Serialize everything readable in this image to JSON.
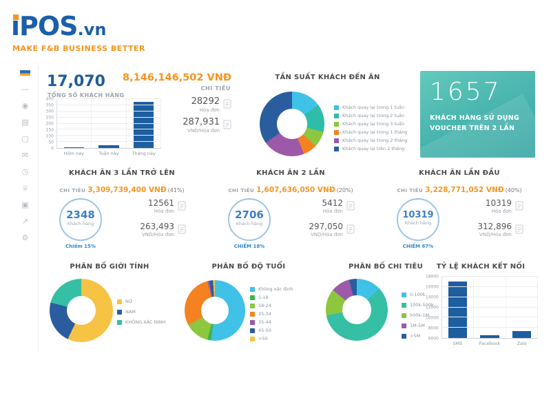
{
  "brand": {
    "logo_main": "iPOS",
    "logo_suffix": ".vn",
    "tagline": "MAKE F&B BUSINESS BETTER"
  },
  "sidebar": {
    "icons": [
      {
        "name": "menu-icon",
        "glyph": "—"
      },
      {
        "name": "users-icon",
        "glyph": "◉"
      },
      {
        "name": "chart-icon",
        "glyph": "▤"
      },
      {
        "name": "window-icon",
        "glyph": "▢"
      },
      {
        "name": "message-icon",
        "glyph": "✉"
      },
      {
        "name": "clock-icon",
        "glyph": "◷"
      },
      {
        "name": "crown-icon",
        "glyph": "♕"
      },
      {
        "name": "camera-icon",
        "glyph": "▣"
      },
      {
        "name": "trend-icon",
        "glyph": "↗"
      },
      {
        "name": "settings-icon",
        "glyph": "⚙"
      }
    ]
  },
  "summary": {
    "total_customers": "17,070",
    "total_customers_label": "TỔNG SỐ KHÁCH HÀNG",
    "spend_value": "8,146,146,502 VNĐ",
    "spend_label": "CHI TIÊU",
    "invoice_count": "28292",
    "invoice_label": "Hóa đơn",
    "avg_value": "287,931",
    "avg_label": "VNĐ/Hóa đơn"
  },
  "voucher_card": {
    "value": "1657",
    "label": "KHÁCH HÀNG SỬ DỤNG VOUCHER TRÊN 2 LẦN"
  },
  "segments": [
    {
      "title": "KHÁCH ĂN 3 LẦN TRỞ LÊN",
      "spend_label": "CHI TIÊU",
      "spend_value": "3,309,739,400 VNĐ",
      "spend_percent": "(41%)",
      "customers": "2348",
      "customers_label": "Khách hàng",
      "share": "Chiếm 15%",
      "invoice_count": "12561",
      "invoice_label": "Hóa đơn",
      "avg_value": "263,493",
      "avg_label": "VND/Hóa đơn"
    },
    {
      "title": "KHÁCH ĂN 2 LẦN",
      "spend_label": "CHI TIÊU",
      "spend_value": "1,607,636,050 VNĐ",
      "spend_percent": "(20%)",
      "customers": "2706",
      "customers_label": "Khách hàng",
      "share": "CHIẾM 18%",
      "invoice_count": "5412",
      "invoice_label": "Hóa đơn",
      "avg_value": "297,050",
      "avg_label": "VND/Hóa đơn"
    },
    {
      "title": "KHÁCH ĂN LẦN ĐẦU",
      "spend_label": "CHI TIÊU",
      "spend_value": "3,228,771,052 VNĐ",
      "spend_percent": "(40%)",
      "customers": "10319",
      "customers_label": "Khách hàng",
      "share": "CHIẾM 67%",
      "invoice_count": "10319",
      "invoice_label": "Hóa đơn",
      "avg_value": "312,896",
      "avg_label": "VND/Hóa đơn"
    }
  ],
  "chart_data": [
    {
      "type": "bar",
      "title": "TỔNG SỐ KHÁCH HÀNG",
      "categories": [
        "Hôm nay",
        "Tuần này",
        "Tháng này"
      ],
      "values": [
        8,
        22,
        375
      ],
      "ylim": [
        0,
        400
      ],
      "yticks": [
        0,
        50,
        100,
        150,
        200,
        250,
        300,
        350,
        400
      ],
      "bar_color": "#1d5e9e",
      "grid": true
    },
    {
      "type": "pie",
      "title": "TẦN SUẤT KHÁCH ĐẾN ĂN",
      "labels": [
        "Khách quay lại trong 1 tuần",
        "Khách quay lại trong 2 tuần",
        "Khách quay lại trong 3 tuần",
        "Khách quay lại trong 1 tháng",
        "Khách quay lại trong 2 tháng",
        "Khách quay lại trên 2 tháng"
      ],
      "values": [
        15,
        14,
        8,
        7,
        21,
        35
      ],
      "colors": [
        "#3fc1e8",
        "#2dbda8",
        "#8dc63f",
        "#f58220",
        "#9b59a8",
        "#2a5d9e"
      ],
      "legend_position": "right"
    },
    {
      "type": "pie",
      "title": "PHÂN BỐ GIỚI TÍNH",
      "labels": [
        "NỮ",
        "NAM",
        "KHÔNG XÁC ĐỊNH"
      ],
      "values": [
        57,
        22,
        21
      ],
      "colors": [
        "#f6c344",
        "#2a5d9e",
        "#35bfa4"
      ],
      "legend_position": "right"
    },
    {
      "type": "pie",
      "title": "PHÂN BỐ ĐỘ TUỔI",
      "labels": [
        "Không xác định",
        "1-18",
        "18-24",
        "25-34",
        "35-44",
        "45-50",
        ">50"
      ],
      "values": [
        52,
        2,
        13,
        29,
        1,
        2,
        1
      ],
      "colors": [
        "#3fc1e8",
        "#3cb54a",
        "#8dc63f",
        "#f58220",
        "#9b59a8",
        "#2a5d9e",
        "#f6c344"
      ],
      "legend_position": "right"
    },
    {
      "type": "pie",
      "title": "PHÂN BỐ CHI TIÊU",
      "labels": [
        "0-100k",
        "100k-500k",
        "500k-1M",
        "1M-5M",
        ">5M"
      ],
      "values": [
        13,
        59,
        14,
        10,
        4
      ],
      "colors": [
        "#3fc1e8",
        "#35bfa4",
        "#8dc63f",
        "#9b59a8",
        "#2a5d9e"
      ],
      "legend_position": "right"
    },
    {
      "type": "bar",
      "title": "TỶ LỆ KHÁCH KẾT NỐI",
      "categories": [
        "SMS",
        "Facebook",
        "Zalo"
      ],
      "values": [
        17100,
        6500,
        7400
      ],
      "ylim": [
        6000,
        18000
      ],
      "yticks": [
        6000,
        8000,
        10000,
        12000,
        14000,
        16000,
        18000
      ],
      "bar_color": "#1d5e9e",
      "grid": true
    }
  ]
}
